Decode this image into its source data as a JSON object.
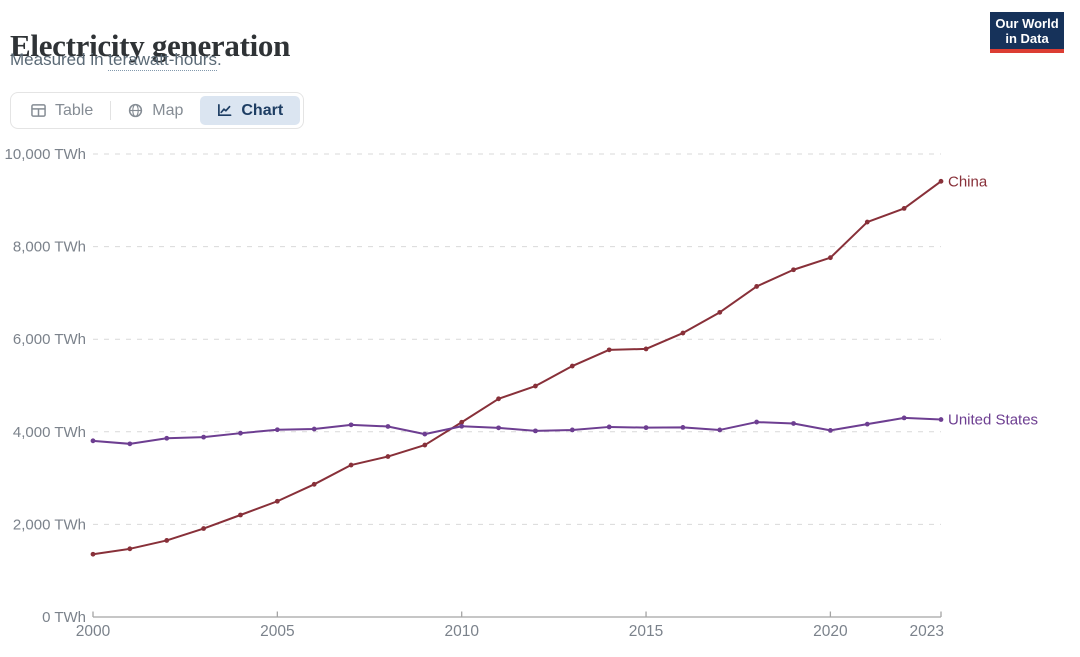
{
  "header": {
    "title": "Electricity generation",
    "subtitle_prefix": "Measured in ",
    "subtitle_term": "terawatt-hours",
    "subtitle_suffix": "."
  },
  "logo": {
    "line1": "Our World",
    "line2": "in Data",
    "bg_color": "#16325a",
    "accent_color": "#dc3d33"
  },
  "tabs": [
    {
      "id": "table",
      "label": "Table",
      "active": false
    },
    {
      "id": "map",
      "label": "Map",
      "active": false
    },
    {
      "id": "chart",
      "label": "Chart",
      "active": true
    }
  ],
  "tab_colors": {
    "active_bg": "#dbe5f1",
    "active_text": "#1d3d63",
    "inactive_text": "#858c94"
  },
  "chart_data": {
    "type": "line",
    "title": "Electricity generation",
    "unit": "TWh",
    "grid": "horizontal-dashed",
    "legend": "end-of-line-labels",
    "ylim": [
      0,
      10000
    ],
    "yticks": [
      0,
      2000,
      4000,
      6000,
      8000,
      10000
    ],
    "ytick_labels": [
      "0 TWh",
      "2,000 TWh",
      "4,000 TWh",
      "6,000 TWh",
      "8,000 TWh",
      "10,000 TWh"
    ],
    "xticks": [
      2000,
      2005,
      2010,
      2015,
      2020,
      2023
    ],
    "x": [
      2000,
      2001,
      2002,
      2003,
      2004,
      2005,
      2006,
      2007,
      2008,
      2009,
      2010,
      2011,
      2012,
      2013,
      2014,
      2015,
      2016,
      2017,
      2018,
      2019,
      2020,
      2021,
      2022,
      2023
    ],
    "series": [
      {
        "name": "China",
        "color": "#883039",
        "values": [
          1356,
          1473,
          1654,
          1911,
          2203,
          2500,
          2866,
          3282,
          3466,
          3714,
          4207,
          4713,
          4988,
          5420,
          5770,
          5790,
          6133,
          6580,
          7140,
          7500,
          7760,
          8530,
          8825,
          9410
        ]
      },
      {
        "name": "United States",
        "color": "#6D3E91",
        "values": [
          3805,
          3740,
          3860,
          3885,
          3970,
          4045,
          4060,
          4150,
          4115,
          3950,
          4120,
          4085,
          4020,
          4040,
          4105,
          4090,
          4095,
          4040,
          4210,
          4180,
          4030,
          4165,
          4300,
          4265
        ]
      }
    ]
  }
}
